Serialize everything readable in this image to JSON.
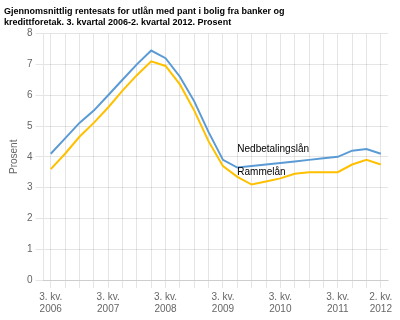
{
  "chart_data": {
    "type": "line",
    "title": "Gjennomsnittlig rentesats for utlån med pant i bolig fra banker og\nkredittforetak. 3. kvartal 2006-2. kvartal 2012. Prosent",
    "y_label": "Prosent",
    "categories": [
      "3. kv.\n2006",
      null,
      null,
      null,
      "3. kv.\n2007",
      null,
      null,
      null,
      "3. kv.\n2008",
      null,
      null,
      null,
      "3. kv.\n2009",
      null,
      null,
      null,
      "3. kv.\n2010",
      null,
      null,
      null,
      "3. kv.\n2011",
      null,
      null,
      "2. kv.\n2012"
    ],
    "series": [
      {
        "color": "#5b9bd5",
        "values": [
          4.1,
          4.6,
          5.1,
          5.5,
          6.0,
          6.5,
          7.0,
          7.45,
          7.2,
          6.6,
          5.8,
          4.8,
          3.9,
          3.65,
          3.7,
          3.75,
          3.8,
          3.85,
          3.9,
          3.95,
          4.0,
          4.2,
          4.25,
          4.1
        ]
      },
      {
        "color": "#ffc000",
        "values": [
          3.6,
          4.1,
          4.65,
          5.1,
          5.6,
          6.15,
          6.65,
          7.1,
          6.95,
          6.35,
          5.5,
          4.5,
          3.7,
          3.35,
          3.1,
          3.2,
          3.3,
          3.45,
          3.5,
          3.5,
          3.5,
          3.75,
          3.9,
          3.75
        ]
      }
    ],
    "annotations": [
      {
        "text": "Nedbetalingslån",
        "x": 13.0,
        "y": 4.15
      },
      {
        "text": "Rammelån",
        "x": 13.0,
        "y": 3.4
      }
    ],
    "ylim": [
      0,
      8
    ],
    "yticks": [
      0,
      1,
      2,
      3,
      4,
      5,
      6,
      7,
      8
    ],
    "grid": true
  }
}
